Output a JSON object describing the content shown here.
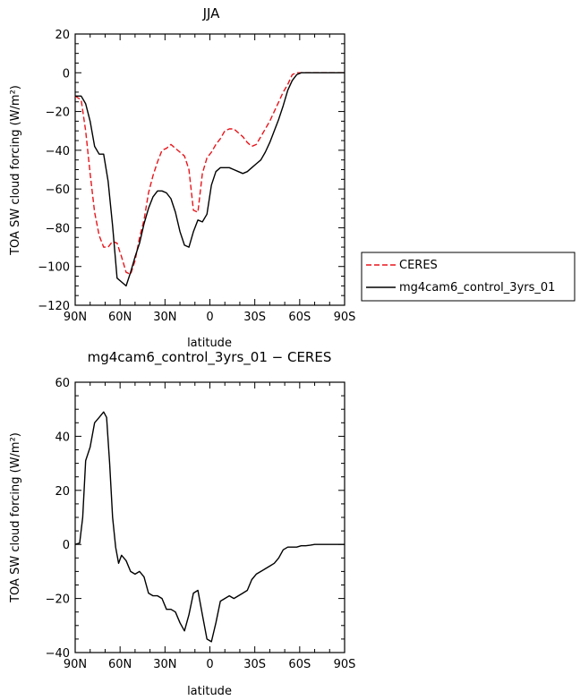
{
  "chart_data": [
    {
      "type": "line",
      "title": "JJA",
      "xlabel": "latitude",
      "ylabel": "TOA SW cloud forcing (W/m²)",
      "xlim": [
        90,
        -90
      ],
      "ylim": [
        -120,
        20
      ],
      "xticks": [
        {
          "v": 90,
          "label": "90N"
        },
        {
          "v": 60,
          "label": "60N"
        },
        {
          "v": 30,
          "label": "30N"
        },
        {
          "v": 0,
          "label": "0"
        },
        {
          "v": -30,
          "label": "30S"
        },
        {
          "v": -60,
          "label": "60S"
        },
        {
          "v": -90,
          "label": "90S"
        }
      ],
      "yticks": [
        {
          "v": 20,
          "label": "20"
        },
        {
          "v": 0,
          "label": "0"
        },
        {
          "v": -20,
          "label": "−20"
        },
        {
          "v": -40,
          "label": "−40"
        },
        {
          "v": -60,
          "label": "−60"
        },
        {
          "v": -80,
          "label": "−80"
        },
        {
          "v": -100,
          "label": "−100"
        },
        {
          "v": -120,
          "label": "−120"
        }
      ],
      "legend": "right",
      "series": [
        {
          "name": "CERES",
          "color": "#e8151b",
          "dash": "dashed",
          "x": [
            90,
            86,
            83,
            80,
            77,
            74,
            71,
            68,
            65,
            62,
            59,
            56,
            53,
            50,
            47,
            44,
            41,
            38,
            35,
            32,
            29,
            26,
            23,
            20,
            17,
            14,
            11,
            8,
            5,
            2,
            -1,
            -4,
            -7,
            -10,
            -13,
            -16,
            -19,
            -22,
            -25,
            -28,
            -31,
            -34,
            -37,
            -40,
            -43,
            -46,
            -49,
            -52,
            -55,
            -58,
            -61,
            -64,
            -67,
            -70,
            -73,
            -76,
            -79,
            -82,
            -85,
            -88,
            -90
          ],
          "values": [
            -12,
            -14,
            -30,
            -52,
            -72,
            -84,
            -90,
            -90,
            -87,
            -88,
            -95,
            -103,
            -104,
            -97,
            -85,
            -76,
            -62,
            -53,
            -46,
            -40,
            -39,
            -37,
            -39,
            -41,
            -43,
            -50,
            -71,
            -72,
            -52,
            -44,
            -41,
            -37,
            -34,
            -30,
            -29,
            -29,
            -31,
            -33,
            -36,
            -38,
            -37,
            -33,
            -29,
            -25,
            -20,
            -15,
            -10,
            -6,
            -1,
            0,
            0,
            0,
            0,
            0,
            0,
            0,
            0,
            0,
            0,
            0,
            0
          ]
        },
        {
          "name": "mg4cam6_control_3yrs_01",
          "color": "#000000",
          "dash": "solid",
          "x": [
            90,
            86,
            83,
            80,
            77,
            74,
            71,
            68,
            65,
            62,
            59,
            56,
            53,
            50,
            47,
            44,
            41,
            38,
            35,
            32,
            29,
            26,
            23,
            20,
            17,
            14,
            11,
            8,
            5,
            2,
            -1,
            -4,
            -7,
            -10,
            -13,
            -16,
            -19,
            -22,
            -25,
            -28,
            -31,
            -34,
            -37,
            -40,
            -43,
            -46,
            -49,
            -52,
            -55,
            -58,
            -61,
            -64,
            -67,
            -70,
            -73,
            -76,
            -79,
            -82,
            -85,
            -88,
            -90
          ],
          "values": [
            -12,
            -12,
            -16,
            -25,
            -38,
            -42,
            -42,
            -56,
            -79,
            -106,
            -108,
            -110,
            -103,
            -95,
            -88,
            -78,
            -70,
            -64,
            -61,
            -61,
            -62,
            -65,
            -72,
            -82,
            -89,
            -90,
            -82,
            -76,
            -77,
            -73,
            -58,
            -51,
            -49,
            -49,
            -49,
            -50,
            -51,
            -52,
            -51,
            -49,
            -47,
            -45,
            -41,
            -36,
            -30,
            -24,
            -17,
            -9,
            -4,
            -1,
            0,
            0,
            0,
            0,
            0,
            0,
            0,
            0,
            0,
            0,
            0
          ]
        }
      ]
    },
    {
      "type": "line",
      "title": "mg4cam6_control_3yrs_01 − CERES",
      "xlabel": "latitude",
      "ylabel": "TOA SW cloud forcing (W/m²)",
      "xlim": [
        90,
        -90
      ],
      "ylim": [
        -40,
        60
      ],
      "xticks": [
        {
          "v": 90,
          "label": "90N"
        },
        {
          "v": 60,
          "label": "60N"
        },
        {
          "v": 30,
          "label": "30N"
        },
        {
          "v": 0,
          "label": "0"
        },
        {
          "v": -30,
          "label": "30S"
        },
        {
          "v": -60,
          "label": "60S"
        },
        {
          "v": -90,
          "label": "90S"
        }
      ],
      "yticks": [
        {
          "v": 60,
          "label": "60"
        },
        {
          "v": 40,
          "label": "40"
        },
        {
          "v": 20,
          "label": "20"
        },
        {
          "v": 0,
          "label": "0"
        },
        {
          "v": -20,
          "label": "−20"
        },
        {
          "v": -40,
          "label": "−40"
        }
      ],
      "series": [
        {
          "name": "",
          "color": "#000000",
          "dash": "solid",
          "x": [
            90,
            87,
            85,
            83,
            80,
            77,
            74,
            71,
            69,
            67,
            65,
            63,
            61,
            59,
            56,
            53,
            50,
            47,
            44,
            41,
            38,
            35,
            32,
            29,
            26,
            23,
            20,
            17,
            14,
            11,
            8,
            5,
            2,
            -1,
            -4,
            -7,
            -10,
            -13,
            -16,
            -19,
            -22,
            -25,
            -28,
            -31,
            -34,
            -37,
            -40,
            -43,
            -46,
            -49,
            -52,
            -55,
            -58,
            -61,
            -64,
            -67,
            -70,
            -73,
            -76,
            -79,
            -82,
            -85,
            -88,
            -90
          ],
          "values": [
            0,
            0.5,
            10,
            31,
            36,
            45,
            47,
            49,
            47,
            30,
            10,
            -1,
            -7,
            -4,
            -6,
            -10,
            -11,
            -10,
            -12,
            -18,
            -19,
            -19,
            -20,
            -24,
            -24,
            -25,
            -29,
            -32,
            -26,
            -18,
            -17,
            -26,
            -35,
            -36,
            -29,
            -21,
            -20,
            -19,
            -20,
            -19,
            -18,
            -17,
            -13,
            -11,
            -10,
            -9,
            -8,
            -7,
            -5,
            -2,
            -1,
            -1,
            -1,
            -0.5,
            -0.5,
            -0.3,
            0,
            0,
            0,
            0,
            0,
            0,
            0,
            0
          ]
        }
      ]
    }
  ]
}
